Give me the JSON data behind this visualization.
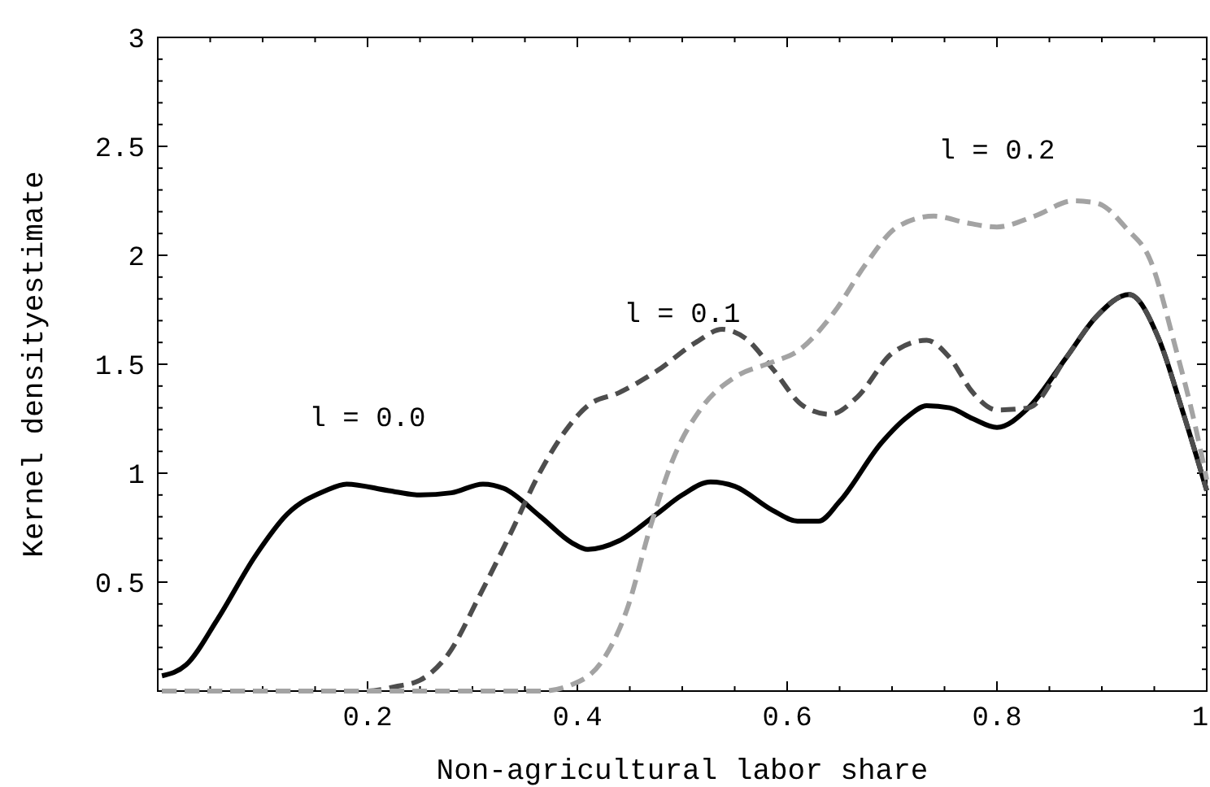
{
  "chart_data": {
    "type": "line",
    "xlabel": "Non-agricultural labor share",
    "ylabel": "Kernel densityestimate",
    "xlim": [
      0,
      1
    ],
    "ylim": [
      0,
      3
    ],
    "xticks": [
      {
        "value": 0.05,
        "label": null
      },
      {
        "value": 0.1,
        "label": null
      },
      {
        "value": 0.15,
        "label": null
      },
      {
        "value": 0.2,
        "label": "0.2"
      },
      {
        "value": 0.25,
        "label": null
      },
      {
        "value": 0.3,
        "label": null
      },
      {
        "value": 0.35,
        "label": null
      },
      {
        "value": 0.4,
        "label": "0.4"
      },
      {
        "value": 0.45,
        "label": null
      },
      {
        "value": 0.5,
        "label": null
      },
      {
        "value": 0.55,
        "label": null
      },
      {
        "value": 0.6,
        "label": "0.6"
      },
      {
        "value": 0.65,
        "label": null
      },
      {
        "value": 0.7,
        "label": null
      },
      {
        "value": 0.75,
        "label": null
      },
      {
        "value": 0.8,
        "label": "0.8"
      },
      {
        "value": 0.85,
        "label": null
      },
      {
        "value": 0.9,
        "label": null
      },
      {
        "value": 0.95,
        "label": null
      },
      {
        "value": 1,
        "label": "1"
      }
    ],
    "yticks": [
      {
        "value": 0.1,
        "label": null
      },
      {
        "value": 0.2,
        "label": null
      },
      {
        "value": 0.3,
        "label": null
      },
      {
        "value": 0.4,
        "label": null
      },
      {
        "value": 0.5,
        "label": "0.5"
      },
      {
        "value": 0.6,
        "label": null
      },
      {
        "value": 0.7,
        "label": null
      },
      {
        "value": 0.8,
        "label": null
      },
      {
        "value": 0.9,
        "label": null
      },
      {
        "value": 1,
        "label": "1"
      },
      {
        "value": 1.1,
        "label": null
      },
      {
        "value": 1.2,
        "label": null
      },
      {
        "value": 1.3,
        "label": null
      },
      {
        "value": 1.4,
        "label": null
      },
      {
        "value": 1.5,
        "label": "1.5"
      },
      {
        "value": 1.6,
        "label": null
      },
      {
        "value": 1.7,
        "label": null
      },
      {
        "value": 1.8,
        "label": null
      },
      {
        "value": 1.9,
        "label": null
      },
      {
        "value": 2,
        "label": "2"
      },
      {
        "value": 2.1,
        "label": null
      },
      {
        "value": 2.2,
        "label": null
      },
      {
        "value": 2.3,
        "label": null
      },
      {
        "value": 2.4,
        "label": null
      },
      {
        "value": 2.5,
        "label": "2.5"
      },
      {
        "value": 2.6,
        "label": null
      },
      {
        "value": 2.7,
        "label": null
      },
      {
        "value": 2.8,
        "label": null
      },
      {
        "value": 2.9,
        "label": null
      },
      {
        "value": 3,
        "label": "3"
      }
    ],
    "grid": false,
    "marker": "none",
    "series": [
      {
        "name": "l = 0.0",
        "color": "#000000",
        "line_style": "solid",
        "x": [
          0.004,
          0.027,
          0.057,
          0.093,
          0.123,
          0.16,
          0.18,
          0.22,
          0.25,
          0.28,
          0.31,
          0.33,
          0.365,
          0.395,
          0.41,
          0.44,
          0.475,
          0.5,
          0.527,
          0.55,
          0.586,
          0.61,
          0.63,
          0.65,
          0.69,
          0.715,
          0.733,
          0.755,
          0.777,
          0.8,
          0.83,
          0.866,
          0.895,
          0.926,
          0.954,
          0.976,
          1.0
        ],
        "values": [
          0.07,
          0.12,
          0.33,
          0.62,
          0.81,
          0.92,
          0.95,
          0.92,
          0.9,
          0.91,
          0.95,
          0.93,
          0.8,
          0.68,
          0.65,
          0.69,
          0.81,
          0.9,
          0.96,
          0.94,
          0.83,
          0.78,
          0.78,
          0.87,
          1.14,
          1.26,
          1.31,
          1.3,
          1.25,
          1.21,
          1.3,
          1.53,
          1.72,
          1.82,
          1.62,
          1.3,
          0.92
        ]
      },
      {
        "name": "l = 0.1",
        "color": "#4d4d4d",
        "line_style": "dashed",
        "x": [
          0.004,
          0.1,
          0.2,
          0.226,
          0.25,
          0.277,
          0.307,
          0.336,
          0.365,
          0.388,
          0.41,
          0.44,
          0.476,
          0.513,
          0.538,
          0.56,
          0.586,
          0.615,
          0.641,
          0.667,
          0.7,
          0.733,
          0.755,
          0.777,
          0.8,
          0.83,
          0.866,
          0.895,
          0.926,
          0.954,
          0.976,
          1.0
        ],
        "values": [
          0,
          0,
          0,
          0.02,
          0.05,
          0.17,
          0.44,
          0.72,
          1.01,
          1.19,
          1.31,
          1.37,
          1.47,
          1.6,
          1.66,
          1.62,
          1.48,
          1.31,
          1.27,
          1.35,
          1.55,
          1.61,
          1.53,
          1.37,
          1.29,
          1.3,
          1.53,
          1.72,
          1.82,
          1.62,
          1.3,
          0.92
        ]
      },
      {
        "name": "l = 0.2",
        "color": "#a3a3a3",
        "line_style": "dashed",
        "x": [
          0.004,
          0.1,
          0.2,
          0.3,
          0.365,
          0.395,
          0.424,
          0.447,
          0.47,
          0.49,
          0.52,
          0.55,
          0.586,
          0.61,
          0.645,
          0.675,
          0.705,
          0.74,
          0.77,
          0.8,
          0.836,
          0.873,
          0.895,
          0.924,
          0.946,
          0.97,
          0.987,
          1.0
        ],
        "values": [
          0,
          0,
          0,
          0,
          0,
          0.03,
          0.14,
          0.37,
          0.76,
          1.05,
          1.31,
          1.44,
          1.51,
          1.56,
          1.74,
          1.96,
          2.13,
          2.18,
          2.15,
          2.13,
          2.18,
          2.25,
          2.24,
          2.12,
          1.98,
          1.58,
          1.26,
          0.97
        ]
      }
    ]
  }
}
